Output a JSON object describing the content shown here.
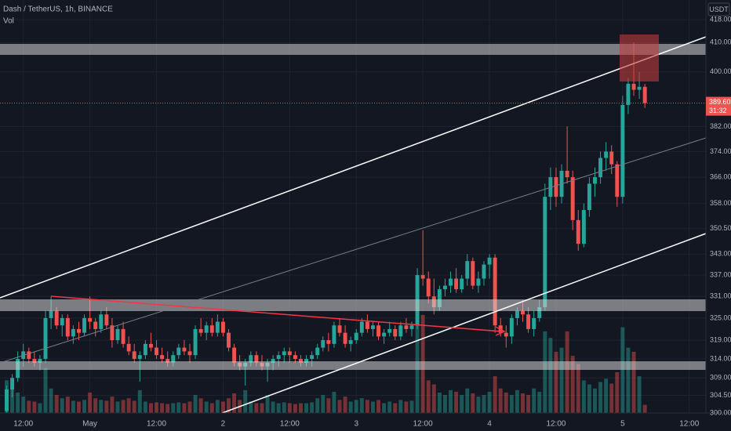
{
  "chart_data": {
    "type": "candlestick",
    "title": "Dash / TetherUS, 1h, BINANCE",
    "volume_label": "Vol",
    "currency": "USDT",
    "log_scale": true,
    "grid": true,
    "up_color": "#26a69a",
    "down_color": "#ef5350",
    "ylim": [
      300,
      425
    ],
    "yticks": [
      {
        "value": 300,
        "label": "300.00"
      },
      {
        "value": 304.5,
        "label": "304.50"
      },
      {
        "value": 309,
        "label": "309.00"
      },
      {
        "value": 314,
        "label": "314.00"
      },
      {
        "value": 319,
        "label": "319.00"
      },
      {
        "value": 325,
        "label": "325.00"
      },
      {
        "value": 331,
        "label": "331.00"
      },
      {
        "value": 337,
        "label": "337.00"
      },
      {
        "value": 343,
        "label": "343.00"
      },
      {
        "value": 350.5,
        "label": "350.50"
      },
      {
        "value": 358,
        "label": "358.00"
      },
      {
        "value": 366,
        "label": "366.00"
      },
      {
        "value": 374,
        "label": "374.00"
      },
      {
        "value": 382,
        "label": "382.00"
      },
      {
        "value": 400,
        "label": "400.00"
      },
      {
        "value": 410,
        "label": "410.00"
      },
      {
        "value": 418,
        "label": "418.00"
      }
    ],
    "xlim": [
      -1.2,
      126
    ],
    "xticks": [
      {
        "value": 3,
        "label": "12:00"
      },
      {
        "value": 15,
        "label": "May"
      },
      {
        "value": 27,
        "label": "12:00"
      },
      {
        "value": 39,
        "label": "2"
      },
      {
        "value": 51,
        "label": "12:00"
      },
      {
        "value": 63,
        "label": "3"
      },
      {
        "value": 75,
        "label": "12:00"
      },
      {
        "value": 87,
        "label": "4"
      },
      {
        "value": 99,
        "label": "12:00"
      },
      {
        "value": 111,
        "label": "5"
      },
      {
        "value": 123,
        "label": "12:00"
      }
    ],
    "last_price": {
      "value": 389.6,
      "label": "389.60"
    },
    "countdown": "31:32",
    "candles": [
      [
        300.5,
        307,
        300,
        306
      ],
      [
        306,
        310,
        304,
        309
      ],
      [
        309,
        316,
        308,
        314
      ],
      [
        314,
        318,
        312,
        316
      ],
      [
        316,
        317,
        313,
        314
      ],
      [
        314,
        316,
        312,
        313
      ],
      [
        313,
        315,
        311,
        314
      ],
      [
        314,
        327,
        313,
        325
      ],
      [
        325,
        331,
        322,
        327
      ],
      [
        327,
        328,
        322,
        323
      ],
      [
        323,
        326,
        320,
        325
      ],
      [
        325,
        326,
        319,
        320
      ],
      [
        320,
        323,
        318,
        322
      ],
      [
        322,
        324,
        319,
        321
      ],
      [
        321,
        326,
        320,
        325
      ],
      [
        325,
        331,
        322,
        324
      ],
      [
        324,
        325,
        320,
        322
      ],
      [
        322,
        327,
        321,
        326
      ],
      [
        326,
        328,
        322,
        323
      ],
      [
        323,
        325,
        317,
        319
      ],
      [
        319,
        323,
        318,
        322
      ],
      [
        322,
        324,
        317,
        318
      ],
      [
        318,
        320,
        315,
        316
      ],
      [
        316,
        318,
        313,
        314
      ],
      [
        314,
        316,
        308,
        315
      ],
      [
        315,
        319,
        314,
        318
      ],
      [
        318,
        321,
        316,
        317
      ],
      [
        317,
        319,
        314,
        315
      ],
      [
        315,
        317,
        313,
        314
      ],
      [
        314,
        316,
        312,
        313
      ],
      [
        313,
        316,
        312,
        315
      ],
      [
        315,
        318,
        314,
        317
      ],
      [
        317,
        319,
        315,
        316
      ],
      [
        316,
        318,
        313,
        315
      ],
      [
        315,
        323,
        314,
        322
      ],
      [
        322,
        325,
        320,
        321
      ],
      [
        321,
        324,
        319,
        323
      ],
      [
        323,
        325,
        320,
        321
      ],
      [
        321,
        326,
        320,
        324
      ],
      [
        324,
        325,
        320,
        321
      ],
      [
        321,
        322,
        316,
        317
      ],
      [
        317,
        318,
        312,
        313
      ],
      [
        313,
        315,
        311,
        312
      ],
      [
        312,
        314,
        307,
        313
      ],
      [
        313,
        316,
        312,
        315
      ],
      [
        315,
        316,
        312,
        313
      ],
      [
        313,
        315,
        311,
        312
      ],
      [
        312,
        314,
        308,
        313
      ],
      [
        313,
        315,
        311,
        314
      ],
      [
        314,
        316,
        312,
        315
      ],
      [
        315,
        317,
        313,
        316
      ],
      [
        316,
        317,
        313,
        315
      ],
      [
        315,
        316,
        313,
        314
      ],
      [
        314,
        315,
        312,
        313
      ],
      [
        313,
        315,
        312,
        314
      ],
      [
        314,
        316,
        312,
        315
      ],
      [
        315,
        318,
        314,
        317
      ],
      [
        317,
        320,
        316,
        319
      ],
      [
        319,
        321,
        316,
        318
      ],
      [
        318,
        324,
        317,
        323
      ],
      [
        323,
        325,
        320,
        321
      ],
      [
        321,
        323,
        317,
        318
      ],
      [
        318,
        320,
        316,
        319
      ],
      [
        319,
        322,
        318,
        321
      ],
      [
        321,
        325,
        320,
        324
      ],
      [
        324,
        326,
        321,
        322
      ],
      [
        322,
        324,
        320,
        323
      ],
      [
        323,
        324,
        319,
        320
      ],
      [
        320,
        322,
        318,
        321
      ],
      [
        321,
        324,
        320,
        322
      ],
      [
        322,
        323,
        319,
        320
      ],
      [
        320,
        324,
        319,
        323
      ],
      [
        323,
        325,
        321,
        322
      ],
      [
        322,
        324,
        320,
        323
      ],
      [
        323,
        339,
        322,
        337
      ],
      [
        337,
        350,
        334,
        336
      ],
      [
        336,
        338,
        329,
        331
      ],
      [
        331,
        336,
        326,
        328
      ],
      [
        328,
        334,
        327,
        333
      ],
      [
        333,
        336,
        331,
        334
      ],
      [
        334,
        338,
        332,
        336
      ],
      [
        336,
        339,
        332,
        333
      ],
      [
        333,
        337,
        332,
        336
      ],
      [
        336,
        343,
        334,
        341
      ],
      [
        341,
        342,
        333,
        334
      ],
      [
        334,
        338,
        332,
        336
      ],
      [
        336,
        341,
        334,
        340
      ],
      [
        340,
        343,
        336,
        342
      ],
      [
        342,
        343,
        321,
        323
      ],
      [
        323,
        325,
        320,
        321
      ],
      [
        321,
        323,
        317,
        320
      ],
      [
        320,
        326,
        318,
        325
      ],
      [
        325,
        328,
        323,
        327
      ],
      [
        327,
        330,
        324,
        326
      ],
      [
        326,
        328,
        321,
        322
      ],
      [
        322,
        327,
        320,
        325
      ],
      [
        325,
        330,
        324,
        328
      ],
      [
        328,
        364,
        327,
        360
      ],
      [
        360,
        369,
        356,
        366
      ],
      [
        366,
        369,
        357,
        360
      ],
      [
        360,
        370,
        358,
        368
      ],
      [
        368,
        382,
        364,
        366
      ],
      [
        366,
        368,
        350,
        353
      ],
      [
        353,
        356,
        344,
        346
      ],
      [
        346,
        358,
        345,
        356
      ],
      [
        356,
        366,
        354,
        364
      ],
      [
        364,
        369,
        360,
        366
      ],
      [
        366,
        374,
        364,
        372
      ],
      [
        372,
        377,
        368,
        374
      ],
      [
        374,
        376,
        367,
        370
      ],
      [
        370,
        371,
        357,
        360
      ],
      [
        360,
        392,
        358,
        389
      ],
      [
        389,
        398,
        386,
        396
      ],
      [
        396,
        410,
        392,
        394
      ],
      [
        394,
        400,
        391,
        395
      ],
      [
        395,
        396,
        388,
        389.6
      ]
    ],
    "volume": [
      40,
      30,
      25,
      20,
      15,
      14,
      12,
      55,
      30,
      22,
      18,
      20,
      15,
      14,
      16,
      25,
      18,
      16,
      15,
      20,
      14,
      16,
      18,
      15,
      28,
      14,
      12,
      13,
      12,
      11,
      12,
      13,
      12,
      14,
      22,
      18,
      14,
      12,
      16,
      14,
      18,
      24,
      16,
      28,
      14,
      12,
      12,
      22,
      14,
      12,
      13,
      12,
      11,
      12,
      12,
      13,
      18,
      22,
      18,
      26,
      16,
      20,
      14,
      16,
      18,
      16,
      14,
      16,
      12,
      14,
      12,
      16,
      14,
      15,
      118,
      120,
      40,
      35,
      25,
      22,
      28,
      26,
      22,
      30,
      24,
      20,
      22,
      26,
      45,
      30,
      25,
      22,
      28,
      24,
      22,
      30,
      26,
      100,
      92,
      75,
      80,
      100,
      70,
      60,
      40,
      35,
      30,
      38,
      42,
      36,
      50,
      105,
      80,
      75,
      45,
      10
    ]
  }
}
